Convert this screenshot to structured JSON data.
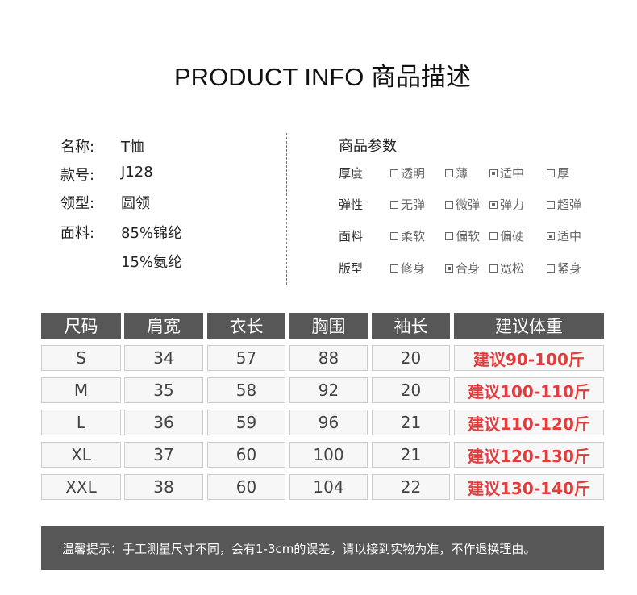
{
  "title": "PRODUCT  INFO 商品描述",
  "info": [
    {
      "label": "名称:",
      "value": "T恤"
    },
    {
      "label": "款号:",
      "value": "J128"
    },
    {
      "label": "领型:",
      "value": "圆领"
    },
    {
      "label": "面料:",
      "value": "85%锦纶"
    },
    {
      "label": "",
      "value": "15%氨纶"
    }
  ],
  "params": {
    "heading": "商品参数",
    "rows": [
      {
        "label": "厚度",
        "options": [
          {
            "text": "透明",
            "checked": false
          },
          {
            "text": "薄",
            "checked": false
          },
          {
            "text": "适中",
            "checked": true
          },
          {
            "text": "厚",
            "checked": false
          }
        ]
      },
      {
        "label": "弹性",
        "options": [
          {
            "text": "无弹",
            "checked": false
          },
          {
            "text": "微弹",
            "checked": false
          },
          {
            "text": "弹力",
            "checked": true
          },
          {
            "text": "超弹",
            "checked": false
          }
        ]
      },
      {
        "label": "面料",
        "options": [
          {
            "text": "柔软",
            "checked": false
          },
          {
            "text": "偏软",
            "checked": false
          },
          {
            "text": "偏硬",
            "checked": false
          },
          {
            "text": "适中",
            "checked": true
          }
        ]
      },
      {
        "label": "版型",
        "options": [
          {
            "text": "修身",
            "checked": false
          },
          {
            "text": "合身",
            "checked": true
          },
          {
            "text": "宽松",
            "checked": false
          },
          {
            "text": "紧身",
            "checked": false
          }
        ]
      }
    ]
  },
  "size_table": {
    "headers": [
      "尺码",
      "肩宽",
      "衣长",
      "胸围",
      "袖长",
      "建议体重"
    ],
    "rows": [
      [
        "S",
        "34",
        "57",
        "88",
        "20",
        "建议90-100斤"
      ],
      [
        "M",
        "35",
        "58",
        "92",
        "20",
        "建议100-110斤"
      ],
      [
        "L",
        "36",
        "59",
        "96",
        "21",
        "建议110-120斤"
      ],
      [
        "XL",
        "37",
        "60",
        "100",
        "21",
        "建议120-130斤"
      ],
      [
        "XXL",
        "38",
        "60",
        "104",
        "22",
        "建议130-140斤"
      ]
    ]
  },
  "footer_note": "温馨提示：手工测量尺寸不同，会有1-3cm的误差，请以接到实物为准，不作退换理由。",
  "colors": {
    "header_bg": "#575757",
    "weight_text": "#e23c3c"
  }
}
